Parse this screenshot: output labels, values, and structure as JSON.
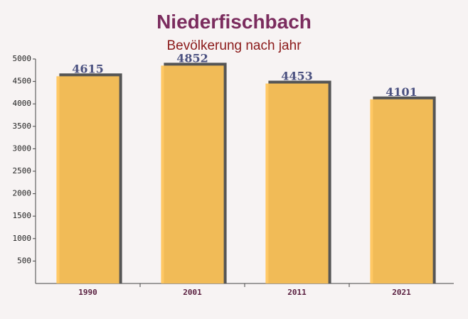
{
  "chart_data": {
    "type": "bar",
    "title": "Niederfischbach",
    "subtitle": "Bevölkerung nach jahr",
    "categories": [
      "1990",
      "2001",
      "2011",
      "2021"
    ],
    "values": [
      4615,
      4852,
      4453,
      4101
    ],
    "color": "#ffc458",
    "ylim": [
      0,
      5000
    ],
    "yticks": [
      500,
      1000,
      1500,
      2000,
      2500,
      3000,
      3500,
      4000,
      4500,
      5000
    ],
    "grid": false
  }
}
